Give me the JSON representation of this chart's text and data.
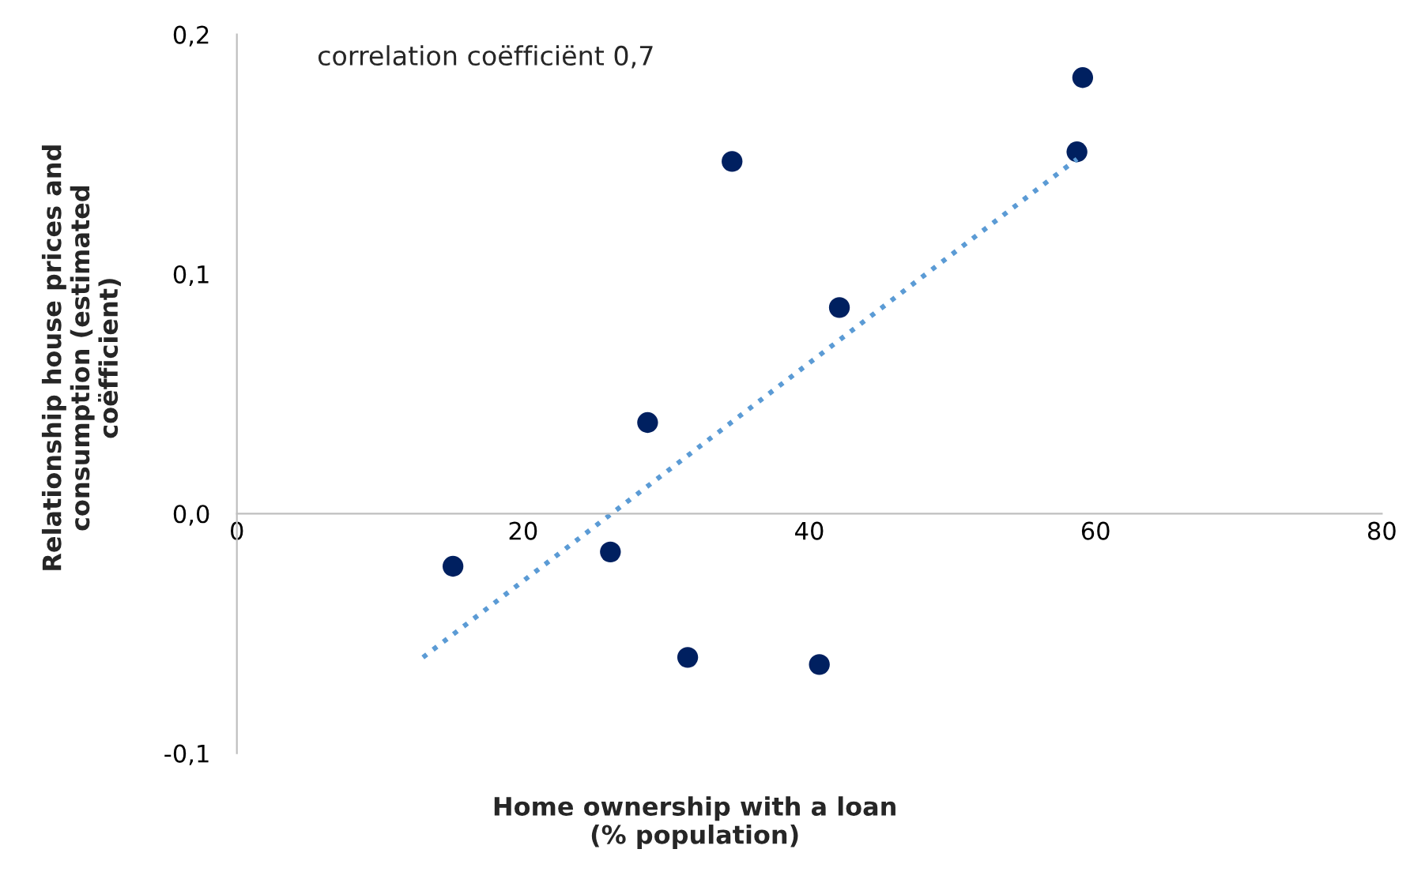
{
  "chart_data": {
    "type": "scatter",
    "xlabel": "Home ownership with a loan\n(% population)",
    "ylabel": "Relationship house prices and\nconsumption (estimated\ncoëfficient)",
    "annotations": [
      "correlation coëfficiënt 0,7"
    ],
    "xlim": [
      0,
      80
    ],
    "xticks": [
      0,
      20,
      40,
      60,
      80
    ],
    "ylim": [
      -0.1,
      0.2
    ],
    "yticks": [
      {
        "value": -0.1,
        "label": "-0,1"
      },
      {
        "value": 0.0,
        "label": "0,0"
      },
      {
        "value": 0.1,
        "label": "0,1"
      },
      {
        "value": 0.2,
        "label": "0,2"
      }
    ],
    "grid": false,
    "legend": false,
    "series": [
      {
        "color": "#002060",
        "marker": "circle",
        "x": [
          15.1,
          26.1,
          28.7,
          31.5,
          34.6,
          40.7,
          42.1,
          58.7,
          59.1
        ],
        "values": [
          -0.022,
          -0.016,
          0.038,
          -0.06,
          0.147,
          -0.063,
          0.086,
          0.151,
          0.182
        ]
      },
      {
        "type": "line",
        "color": "#5b9bd5",
        "line_style": "dotted",
        "marker": "none",
        "x": [
          13.0,
          58.7
        ],
        "values": [
          -0.06,
          0.148
        ]
      }
    ]
  }
}
